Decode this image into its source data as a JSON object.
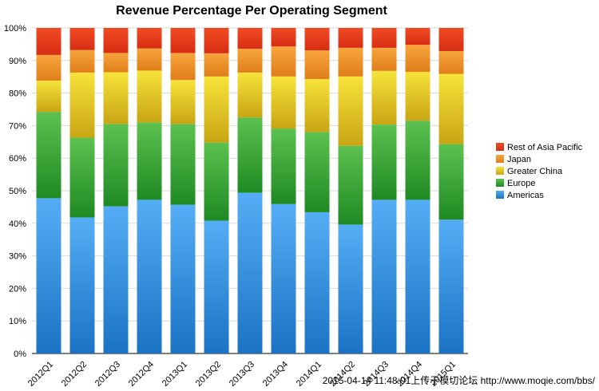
{
  "chart_data": {
    "type": "bar",
    "stacked": true,
    "title": "Revenue Percentage Per Operating Segment",
    "xlabel": "",
    "ylabel": "",
    "ylim": [
      0,
      100
    ],
    "ytick_labels": [
      "0%",
      "10%",
      "20%",
      "30%",
      "40%",
      "50%",
      "60%",
      "70%",
      "80%",
      "90%",
      "100%"
    ],
    "grid": true,
    "legend_position": "right",
    "categories": [
      "2012Q1",
      "2012Q2",
      "2012Q3",
      "2012Q4",
      "2013Q1",
      "2013Q2",
      "2013Q3",
      "2013Q4",
      "2014Q1",
      "2014Q2",
      "2014Q3",
      "2014Q4",
      "2015Q1"
    ],
    "series": [
      {
        "name": "Americas",
        "color_top": "#55aef5",
        "color_bottom": "#1a73c4",
        "values": [
          47.7,
          41.8,
          45.2,
          47.2,
          45.7,
          40.8,
          49.4,
          45.9,
          43.4,
          39.6,
          47.2,
          47.2,
          41.1
        ]
      },
      {
        "name": "Europe",
        "color_top": "#5cc14f",
        "color_bottom": "#1f8a23",
        "values": [
          26.5,
          24.5,
          25.3,
          23.8,
          24.8,
          24.0,
          23.1,
          23.2,
          24.6,
          24.2,
          23.1,
          24.3,
          23.2
        ]
      },
      {
        "name": "Greater China",
        "color_top": "#f7e33a",
        "color_bottom": "#c9a514",
        "values": [
          9.6,
          20.0,
          15.9,
          15.9,
          13.5,
          20.3,
          13.8,
          16.0,
          16.3,
          21.3,
          16.5,
          15.0,
          21.6
        ]
      },
      {
        "name": "Japan",
        "color_top": "#f7a53c",
        "color_bottom": "#e07e1a",
        "values": [
          7.9,
          6.9,
          5.9,
          6.8,
          8.3,
          7.1,
          7.3,
          9.2,
          8.8,
          8.8,
          7.1,
          8.3,
          7.0
        ]
      },
      {
        "name": "Rest of Asia Pacific",
        "color_top": "#f04b23",
        "color_bottom": "#d72d14",
        "values": [
          8.3,
          6.8,
          7.7,
          6.3,
          7.7,
          7.8,
          6.4,
          5.7,
          6.9,
          6.1,
          6.1,
          5.2,
          7.1
        ]
      }
    ],
    "legend_order": [
      "Rest of Asia Pacific",
      "Japan",
      "Greater China",
      "Europe",
      "Americas"
    ]
  },
  "watermark": "2015-04-14 11:48:01上传于模切论坛 http://www.moqie.com/bbs/"
}
